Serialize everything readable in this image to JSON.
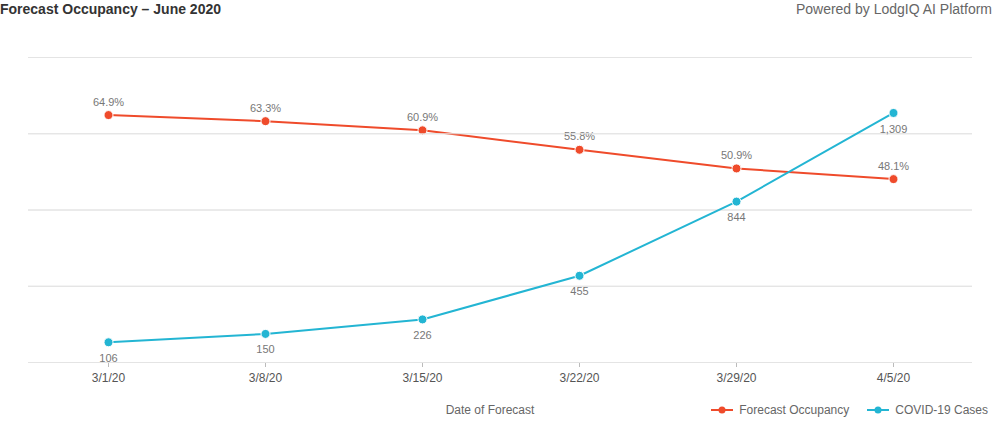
{
  "chart_data": {
    "type": "line",
    "title": "Forecast Occupancy – June 2020",
    "subtitle": "Powered by LodgIQ AI Platform",
    "x_label": "Date of Forecast",
    "x": [
      "3/1/20",
      "3/8/20",
      "3/15/20",
      "3/22/20",
      "3/29/20",
      "4/5/20"
    ],
    "ylim": [
      0,
      80
    ],
    "yticks": [
      0,
      20,
      40,
      60,
      80
    ],
    "y2lim": [
      0,
      1600
    ],
    "y2ticks": [
      0,
      400,
      800,
      1200,
      1600
    ],
    "grid": true,
    "tick_labels": "x",
    "legend": "bottom-right",
    "data_labels": true,
    "series": [
      {
        "name": "Forecast Occupancy",
        "color": "#ef4b2b",
        "marker": "circle",
        "line_style": "solid",
        "values": [
          64.9,
          63.3,
          60.9,
          55.8,
          50.9,
          48.1
        ],
        "value_labels": [
          "64.9%",
          "63.3%",
          "60.9%",
          "55.8%",
          "50.9%",
          "48.1%"
        ]
      },
      {
        "name": "COVID-19 Cases",
        "color": "#23b5d3",
        "marker": "circle",
        "line_style": "solid",
        "axis": "y2",
        "values": [
          106,
          150,
          226,
          455,
          844,
          1309
        ],
        "value_labels": [
          "106",
          "150",
          "226",
          "455",
          "844",
          "1,309"
        ]
      }
    ]
  }
}
